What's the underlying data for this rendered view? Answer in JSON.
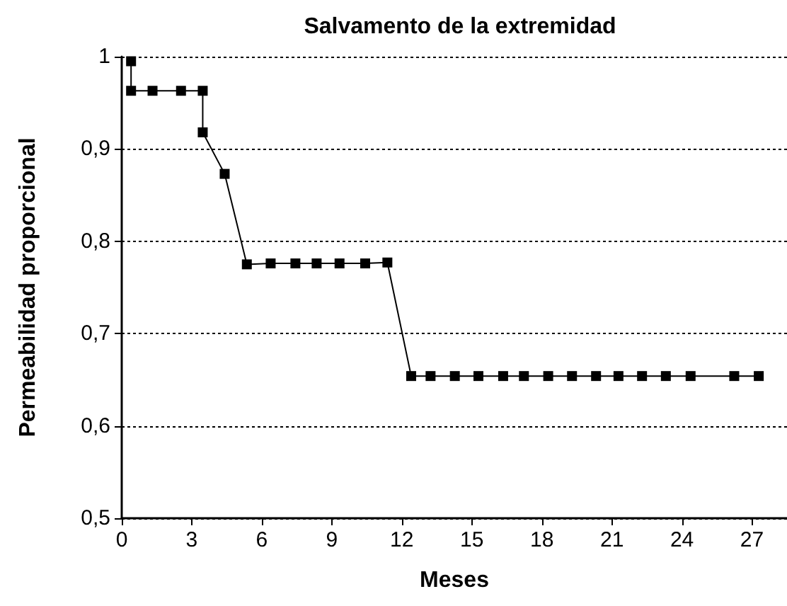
{
  "chart_data": {
    "type": "line",
    "title": "Salvamento de la extremidad",
    "xlabel": "Meses",
    "ylabel": "Permeabilidad proporcional",
    "x": [
      0.4,
      0.4,
      1.32,
      2.54,
      3.47,
      3.47,
      4.41,
      5.36,
      6.38,
      7.44,
      8.35,
      9.33,
      10.43,
      11.38,
      12.4,
      13.23,
      14.27,
      15.28,
      16.34,
      17.23,
      18.27,
      19.29,
      20.32,
      21.28,
      22.29,
      23.31,
      24.37,
      26.24,
      27.29
    ],
    "series": [
      {
        "color": "#000000",
        "values": [
          0.995,
          0.963,
          0.963,
          0.963,
          0.963,
          0.918,
          0.873,
          0.775,
          0.776,
          0.776,
          0.776,
          0.776,
          0.776,
          0.777,
          0.654,
          0.654,
          0.654,
          0.654,
          0.654,
          0.654,
          0.654,
          0.654,
          0.654,
          0.654,
          0.654,
          0.654,
          0.654,
          0.654,
          0.654
        ]
      }
    ],
    "xlim": [
      0,
      28.5
    ],
    "xticks": [
      0,
      3,
      6,
      9,
      12,
      15,
      18,
      21,
      24,
      27
    ],
    "ylim": [
      0.5,
      1
    ],
    "yticks": [
      {
        "value": 0.5,
        "label": "0,5"
      },
      {
        "value": 0.6,
        "label": "0,6"
      },
      {
        "value": 0.7,
        "label": "0,7"
      },
      {
        "value": 0.8,
        "label": "0,8"
      },
      {
        "value": 0.9,
        "label": "0,9"
      },
      1
    ],
    "grid": "y",
    "marker": "square",
    "line_style": "solid"
  }
}
